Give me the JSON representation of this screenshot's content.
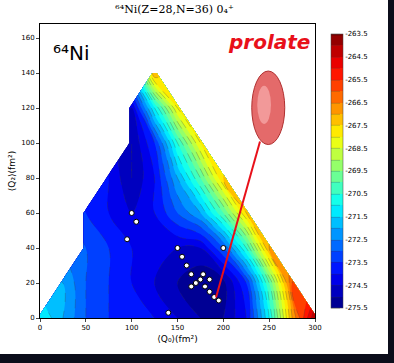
{
  "chart_data": {
    "type": "contour",
    "title": "⁶⁴Ni(Z=28,N=36) 0₄⁺",
    "x_label": "⟨Q₀⟩(fm²)",
    "y_label": "⟨Q₂⟩(fm²)",
    "annotations": [
      "⁶⁴Ni",
      "prolate"
    ],
    "xlim": [
      0,
      300
    ],
    "xticks": [
      0,
      50,
      100,
      150,
      200,
      250,
      300
    ],
    "ylim": [
      0,
      168
    ],
    "yticks": [
      0,
      20,
      40,
      60,
      80,
      100,
      120,
      140,
      160
    ],
    "grid": false,
    "cells": {
      "x": [
        0,
        25,
        50,
        75,
        100,
        125,
        150,
        175,
        200,
        225,
        250,
        275,
        300
      ],
      "y": [
        0,
        20,
        40,
        60,
        80,
        100,
        120,
        140
      ],
      "z": [
        [
          -271,
          -272,
          -273,
          -273.5,
          -273.5,
          -274,
          -274.5,
          -275,
          -275,
          -274,
          -271,
          -267,
          -264
        ],
        [
          null,
          -272,
          -273,
          -273.5,
          -274,
          -274.5,
          -275,
          -275.5,
          -275.2,
          -273.5,
          -270,
          -266,
          null
        ],
        [
          null,
          null,
          -273,
          -273.5,
          -274,
          -274,
          -274.5,
          -274.5,
          -273,
          -270.5,
          -267,
          null,
          null
        ],
        [
          null,
          null,
          -273.5,
          -274,
          -274.5,
          -274,
          -273,
          -272,
          -270,
          -267.5,
          null,
          null,
          null
        ],
        [
          null,
          null,
          null,
          -274,
          -275,
          -274,
          -272,
          -270,
          -267.5,
          null,
          null,
          null,
          null
        ],
        [
          null,
          null,
          null,
          null,
          -275,
          -273.5,
          -270.5,
          -268,
          null,
          null,
          null,
          null,
          null
        ],
        [
          null,
          null,
          null,
          null,
          -274.5,
          -271,
          -268,
          null,
          null,
          null,
          null,
          null,
          null
        ],
        [
          null,
          null,
          null,
          null,
          null,
          -267,
          null,
          null,
          null,
          null,
          null,
          null,
          null
        ]
      ]
    },
    "zlim": [
      -275.5,
      -263.5
    ],
    "zticks": [
      -263.5,
      -264.5,
      -265.5,
      -266.5,
      -267.5,
      -268.5,
      -269.5,
      -270.5,
      -271.5,
      -272.5,
      -273.5,
      -274.5,
      -275.5
    ],
    "points": {
      "marker": "circle",
      "x": [
        100,
        95,
        105,
        150,
        155,
        160,
        165,
        170,
        175,
        180,
        185,
        190,
        195,
        200,
        140,
        165,
        178,
        185
      ],
      "y": [
        60,
        45,
        55,
        40,
        35,
        30,
        25,
        20,
        22,
        18,
        15,
        12,
        10,
        40,
        3,
        18,
        25,
        22
      ]
    }
  }
}
